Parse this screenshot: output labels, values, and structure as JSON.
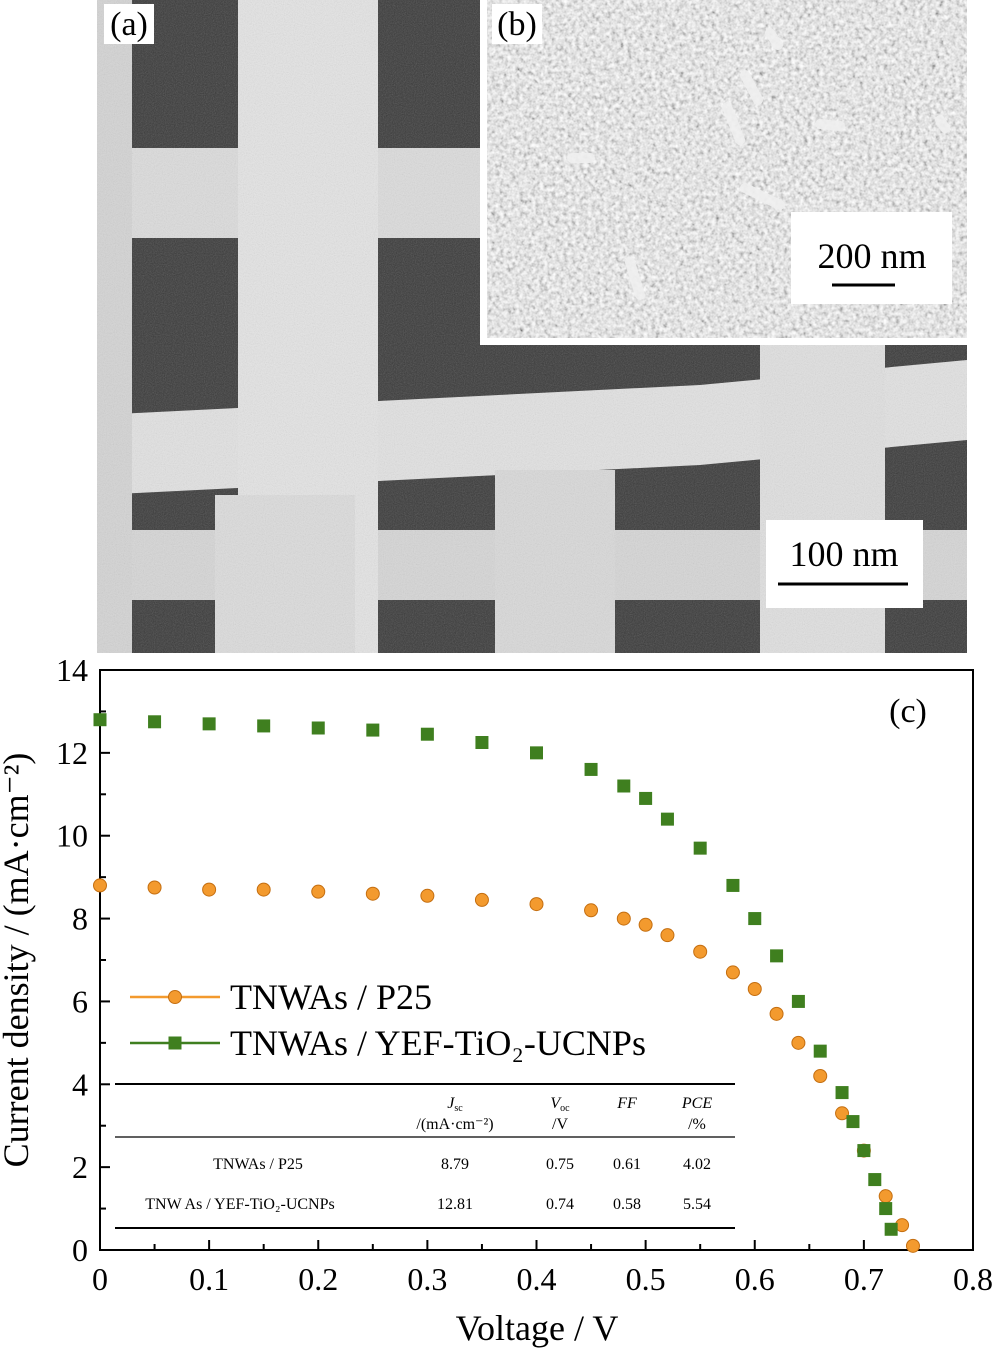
{
  "panels": {
    "a": {
      "label": "(a)",
      "scalebar": "100 nm"
    },
    "b": {
      "label": "(b)",
      "scalebar": "200 nm"
    },
    "c": {
      "label": "(c)"
    }
  },
  "chart_data": {
    "type": "scatter",
    "xlabel": "Voltage / V",
    "ylabel": "Current density / (mA·cm⁻²)",
    "xlim": [
      0,
      0.8
    ],
    "ylim": [
      0,
      14
    ],
    "x_ticks": [
      "0",
      "0.1",
      "0.2",
      "0.3",
      "0.4",
      "0.5",
      "0.6",
      "0.7",
      "0.8"
    ],
    "y_ticks": [
      "0",
      "2",
      "4",
      "6",
      "8",
      "10",
      "12",
      "14"
    ],
    "legend_position": "middle-left",
    "series": [
      {
        "name": "TNWAs / P25",
        "marker": "circle",
        "color": "#f39a2e",
        "x": [
          0,
          0.05,
          0.1,
          0.15,
          0.2,
          0.25,
          0.3,
          0.35,
          0.4,
          0.45,
          0.48,
          0.5,
          0.52,
          0.55,
          0.58,
          0.6,
          0.62,
          0.64,
          0.66,
          0.68,
          0.7,
          0.72,
          0.735,
          0.745
        ],
        "y": [
          8.8,
          8.75,
          8.7,
          8.7,
          8.65,
          8.6,
          8.55,
          8.45,
          8.35,
          8.2,
          8.0,
          7.85,
          7.6,
          7.2,
          6.7,
          6.3,
          5.7,
          5.0,
          4.2,
          3.3,
          2.4,
          1.3,
          0.6,
          0.1
        ]
      },
      {
        "name": "TNWAs / YEF-TiO₂-UCNPs",
        "marker": "square",
        "color": "#3f7f1f",
        "x": [
          0,
          0.05,
          0.1,
          0.15,
          0.2,
          0.25,
          0.3,
          0.35,
          0.4,
          0.45,
          0.48,
          0.5,
          0.52,
          0.55,
          0.58,
          0.6,
          0.62,
          0.64,
          0.66,
          0.68,
          0.69,
          0.7,
          0.71,
          0.72,
          0.725
        ],
        "y": [
          12.8,
          12.75,
          12.7,
          12.65,
          12.6,
          12.55,
          12.45,
          12.25,
          12.0,
          11.6,
          11.2,
          10.9,
          10.4,
          9.7,
          8.8,
          8.0,
          7.1,
          6.0,
          4.8,
          3.8,
          3.1,
          2.4,
          1.7,
          1.0,
          0.5
        ]
      }
    ],
    "table": {
      "headers": [
        [
          "J",
          "sc",
          "/(mA·cm⁻²)"
        ],
        [
          "V",
          "oc",
          "/V"
        ],
        [
          "FF",
          "",
          ""
        ],
        [
          "PCE",
          "",
          "/%"
        ]
      ],
      "rows": [
        {
          "name": "TNWAs / P25",
          "values": [
            "8.79",
            "0.75",
            "0.61",
            "4.02"
          ]
        },
        {
          "name": "TNW As / YEF-TiO₂-UCNPs",
          "values": [
            "12.81",
            "0.74",
            "0.58",
            "5.54"
          ]
        }
      ]
    }
  }
}
